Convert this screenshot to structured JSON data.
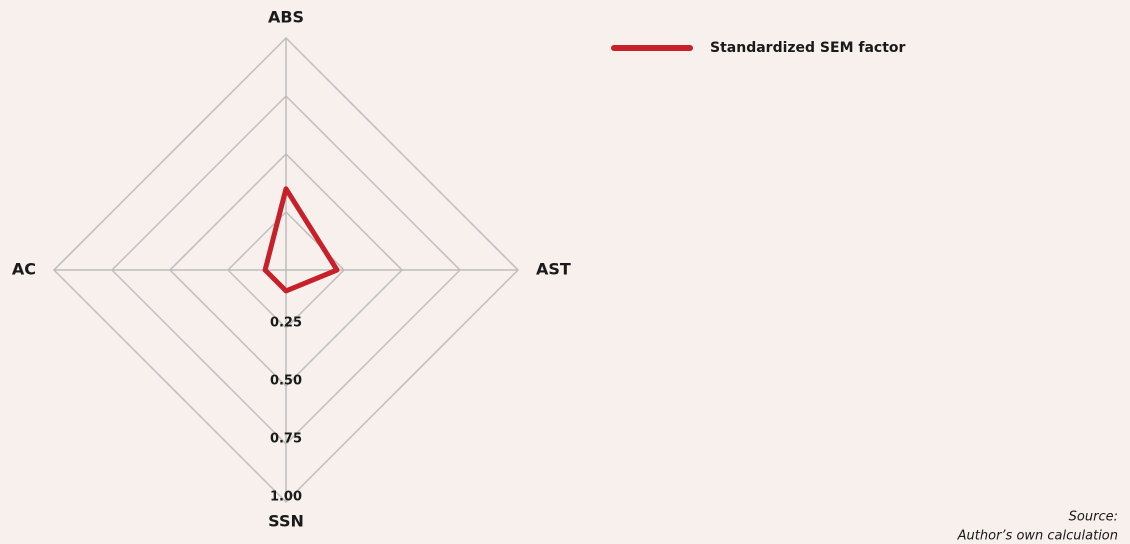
{
  "chart_data": {
    "type": "radar",
    "categories": [
      "ABS",
      "AST",
      "SSN",
      "AC"
    ],
    "series": [
      {
        "name": "Standardized SEM factor",
        "color": "#c8202a",
        "values": [
          0.35,
          0.22,
          0.09,
          0.09
        ]
      }
    ],
    "rlim": [
      0,
      1
    ],
    "rticks": [
      0.25,
      {
        "value": 0.5,
        "label": "0.50"
      },
      0.75,
      {
        "value": 1,
        "label": "1.00"
      }
    ],
    "grid": true,
    "legend": "top-right",
    "source": [
      "Source:",
      "Author’s own calculation"
    ]
  }
}
